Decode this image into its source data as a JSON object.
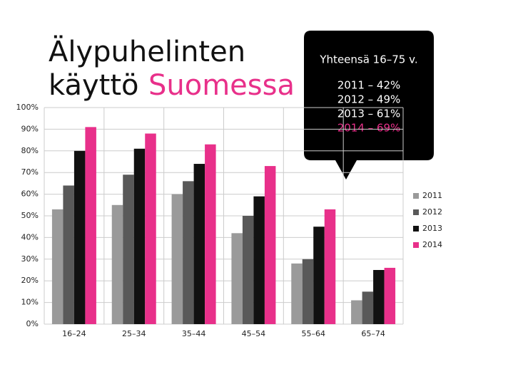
{
  "chart_data": {
    "type": "bar",
    "title": [
      "Älypuhelinten",
      "käyttö",
      "Suomessa"
    ],
    "annotation": {
      "title": "Yhteensä 16–75 v.",
      "lines": [
        "2011 – 42%",
        "2012 – 49%",
        "2013 – 61%",
        "2014 – 69%"
      ]
    },
    "categories": [
      "16–24",
      "25–34",
      "35–44",
      "45–54",
      "55–64",
      "65–74"
    ],
    "series": [
      {
        "name": "2011",
        "color": "#9a9a9a",
        "values": [
          53,
          55,
          60,
          42,
          28,
          11
        ]
      },
      {
        "name": "2012",
        "color": "#595959",
        "values": [
          64,
          69,
          66,
          50,
          30,
          15
        ]
      },
      {
        "name": "2013",
        "color": "#111111",
        "values": [
          80,
          81,
          74,
          59,
          45,
          25
        ]
      },
      {
        "name": "2014",
        "color": "#e8308a",
        "values": [
          91,
          88,
          83,
          73,
          53,
          26
        ]
      }
    ],
    "ylim": [
      0,
      100
    ],
    "yticks": [
      {
        "value": 0,
        "label": "0%"
      },
      {
        "value": 10,
        "label": "10%"
      },
      {
        "value": 20,
        "label": "20%"
      },
      {
        "value": 30,
        "label": "30%"
      },
      {
        "value": 40,
        "label": "40%"
      },
      {
        "value": 50,
        "label": "50%"
      },
      {
        "value": 60,
        "label": "60%"
      },
      {
        "value": 70,
        "label": "70%"
      },
      {
        "value": 80,
        "label": "80%"
      },
      {
        "value": 90,
        "label": "90%"
      },
      {
        "value": 100,
        "label": "100%"
      }
    ],
    "grid": true,
    "legend": "right"
  }
}
